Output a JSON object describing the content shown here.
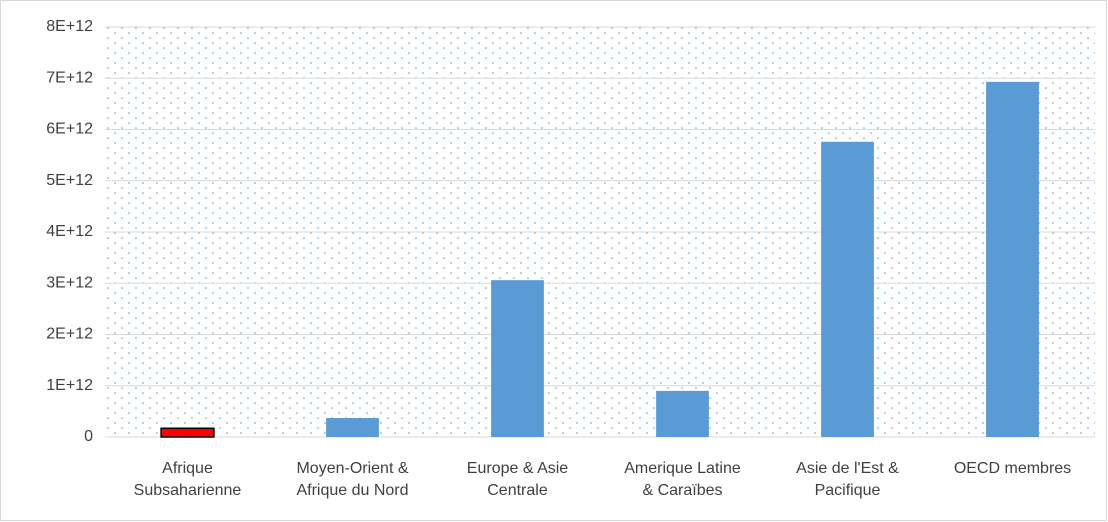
{
  "chart_data": {
    "type": "bar",
    "categories": [
      "Afrique Subsaharienne",
      "Moyen-Orient & Afrique du Nord",
      "Europe & Asie Centrale",
      "Amerique Latine & Caraïbes",
      "Asie de l'Est & Pacifique",
      "OECD membres"
    ],
    "values": [
      170000000000,
      370000000000,
      3060000000000,
      900000000000,
      5760000000000,
      6930000000000
    ],
    "colors": [
      "#ff0000",
      "#5b9bd5",
      "#5b9bd5",
      "#5b9bd5",
      "#5b9bd5",
      "#5b9bd5"
    ],
    "ylim": [
      0,
      8000000000000
    ],
    "yticks": [
      0,
      {
        "value": 1000000000000,
        "label": "1E+12"
      },
      {
        "value": 2000000000000,
        "label": "2E+12"
      },
      {
        "value": 3000000000000,
        "label": "3E+12"
      },
      {
        "value": 4000000000000,
        "label": "4E+12"
      },
      {
        "value": 5000000000000,
        "label": "5E+12"
      },
      {
        "value": 6000000000000,
        "label": "6E+12"
      },
      {
        "value": 7000000000000,
        "label": "7E+12"
      },
      {
        "value": 8000000000000,
        "label": "8E+12"
      }
    ],
    "grid": true
  }
}
